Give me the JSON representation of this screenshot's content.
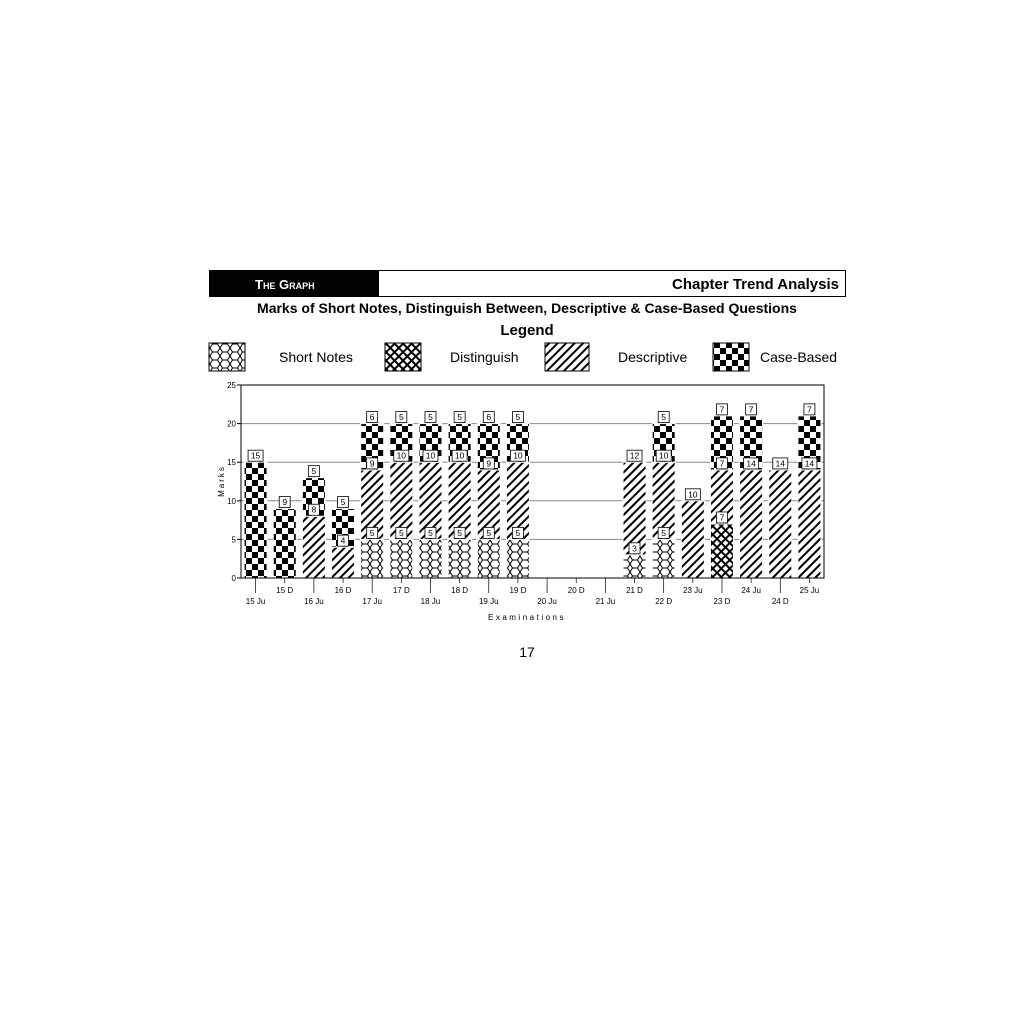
{
  "header": {
    "section": "The Graph",
    "title": "Chapter Trend Analysis"
  },
  "page_number": "17",
  "chart_data": {
    "type": "bar",
    "stacked": true,
    "title": "Marks of Short Notes, Distinguish Between, Descriptive & Case-Based Questions",
    "legend_title": "Legend",
    "legend_placement": "top",
    "xlabel": "Examinations",
    "ylabel": "Marks",
    "ylim": [
      0,
      25
    ],
    "yticks": [
      0,
      5,
      10,
      15,
      20,
      25
    ],
    "grid": true,
    "categories": [
      "15 Ju",
      "15 D",
      "16 Ju",
      "16 D",
      "17 Ju",
      "17 D",
      "18 Ju",
      "18 D",
      "19 Ju",
      "19 D",
      "20 Ju",
      "20 D",
      "21 Ju",
      "21 D",
      "22 D",
      "23 Ju",
      "23 D",
      "24 Ju",
      "24 D",
      "25 Ju"
    ],
    "series": [
      {
        "name": "Short Notes",
        "pattern": "hexagon",
        "values": [
          0,
          0,
          0,
          0,
          5,
          5,
          5,
          5,
          5,
          5,
          0,
          0,
          0,
          3,
          5,
          0,
          0,
          0,
          0,
          0
        ]
      },
      {
        "name": "Distinguish",
        "pattern": "crosshatch",
        "values": [
          0,
          0,
          0,
          0,
          0,
          0,
          0,
          0,
          0,
          0,
          0,
          0,
          0,
          0,
          0,
          0,
          7,
          0,
          0,
          0
        ]
      },
      {
        "name": "Descriptive",
        "pattern": "diagonal",
        "values": [
          0,
          0,
          8,
          4,
          9,
          10,
          10,
          10,
          9,
          10,
          0,
          0,
          0,
          12,
          10,
          10,
          7,
          14,
          14,
          14
        ]
      },
      {
        "name": "Case-Based",
        "pattern": "checker",
        "values": [
          15,
          9,
          5,
          5,
          6,
          5,
          5,
          5,
          6,
          5,
          0,
          0,
          0,
          0,
          5,
          0,
          7,
          7,
          0,
          7
        ]
      }
    ]
  }
}
